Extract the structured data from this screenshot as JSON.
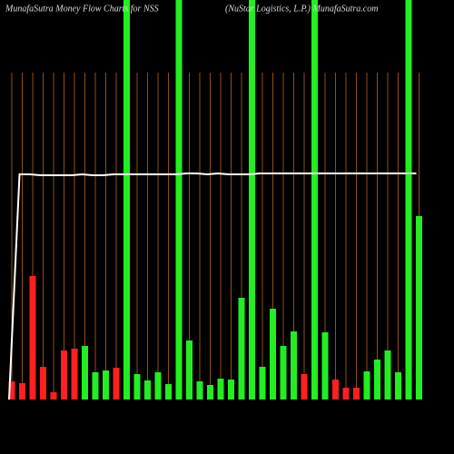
{
  "chart_data": {
    "type": "bar",
    "title": "MunafaSutra  Money Flow  Charts for NSS",
    "subtitle": "(NuStar Logistics, L.P.) MunafaSutra.com",
    "categories": [
      null,
      null,
      null,
      null,
      null,
      null,
      null,
      null,
      null,
      null,
      null,
      null,
      null,
      null,
      null,
      null,
      null,
      null,
      null,
      null,
      null,
      null,
      null,
      null,
      null,
      null,
      null,
      null,
      null,
      null,
      null,
      null,
      null,
      null,
      null,
      null,
      null,
      null,
      null,
      null
    ],
    "values": [
      20,
      18,
      136,
      36,
      8,
      54,
      56,
      59,
      30,
      32,
      35,
      440,
      28,
      21,
      30,
      17,
      440,
      65,
      20,
      16,
      23,
      22,
      112,
      440,
      36,
      100,
      59,
      75,
      28,
      440,
      74,
      22,
      13,
      13,
      31,
      44,
      54,
      30,
      440,
      202
    ],
    "colors": [
      "#ff2020",
      "#ff2020",
      "#ff2020",
      "#ff2020",
      "#ff2020",
      "#ff2020",
      "#ff2020",
      "#22ee22",
      "#22ee22",
      "#22ee22",
      "#ff2020",
      "#22ee22",
      "#22ee22",
      "#22ee22",
      "#22ee22",
      "#22ee22",
      "#22ee22",
      "#22ee22",
      "#22ee22",
      "#22ee22",
      "#22ee22",
      "#22ee22",
      "#22ee22",
      "#22ee22",
      "#22ee22",
      "#22ee22",
      "#22ee22",
      "#22ee22",
      "#ff2020",
      "#22ee22",
      "#22ee22",
      "#ff2020",
      "#ff2020",
      "#ff2020",
      "#22ee22",
      "#22ee22",
      "#22ee22",
      "#22ee22",
      "#22ee22",
      "#22ee22"
    ],
    "line_values": [
      0,
      248,
      248,
      247,
      247,
      247,
      247,
      248,
      247,
      247,
      248,
      248,
      248,
      248,
      248,
      248,
      248,
      249,
      249,
      248,
      249,
      248,
      248,
      248,
      249,
      249,
      249,
      249,
      249,
      249,
      249,
      249,
      249,
      249,
      249,
      249,
      249,
      249,
      249,
      249
    ],
    "line_color": "#ffffff",
    "ylim": [
      0,
      440
    ]
  }
}
